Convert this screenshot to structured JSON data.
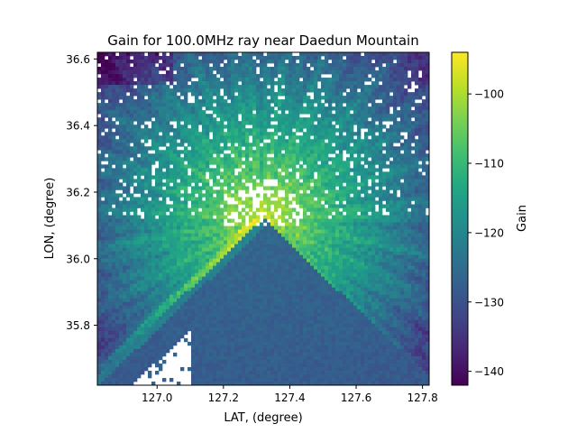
{
  "chart_data": {
    "type": "heatmap",
    "title": "Gain for 100.0MHz ray near Daedun Mountain",
    "xlabel": "LAT, (degree)",
    "ylabel": "LON, (degree)",
    "xlim": [
      126.82,
      127.82
    ],
    "ylim": [
      35.62,
      36.62
    ],
    "x_ticks": [
      127.0,
      127.2,
      127.4,
      127.6,
      127.8
    ],
    "x_tick_labels": [
      "127.0",
      "127.2",
      "127.4",
      "127.6",
      "127.8"
    ],
    "y_ticks": [
      35.8,
      36.0,
      36.2,
      36.4,
      36.6
    ],
    "y_tick_labels": [
      "35.8",
      "36.0",
      "36.2",
      "36.4",
      "36.6"
    ],
    "grid": false,
    "transmitter": [
      127.32,
      36.12
    ],
    "colormap": "viridis",
    "colorbar": {
      "label": "Gain",
      "range": [
        -142,
        -94
      ],
      "ticks": [
        -140,
        -130,
        -120,
        -110,
        -100
      ],
      "tick_labels": [
        "−140",
        "−130",
        "−120",
        "−110",
        "−100"
      ]
    },
    "missing_color": "#ffffff"
  }
}
